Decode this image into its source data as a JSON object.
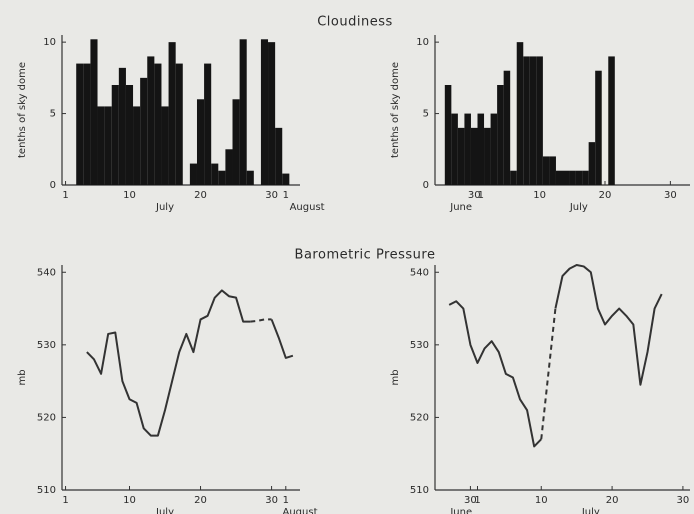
{
  "titles": [
    "Cloudiness",
    "Barometric Pressure"
  ],
  "chart_data": [
    {
      "type": "bar",
      "ylabel": "tenths of sky dome",
      "color": "#141414",
      "x": [
        3,
        4,
        5,
        6,
        7,
        8,
        9,
        10,
        11,
        12,
        13,
        14,
        15,
        16,
        17,
        18,
        19,
        20,
        21,
        22,
        23,
        24,
        25,
        26,
        27,
        28,
        29,
        30,
        31,
        32
      ],
      "values": [
        8.5,
        8.5,
        10.2,
        5.5,
        5.5,
        7,
        8.2,
        7,
        5.5,
        7.5,
        9,
        8.5,
        5.5,
        10,
        8.5,
        0,
        1.5,
        6,
        8.5,
        1.5,
        1,
        2.5,
        6,
        10.2,
        1,
        0,
        10.2,
        10,
        4,
        0.8
      ],
      "xlim": [
        0.5,
        34
      ],
      "xticks": [
        1,
        10,
        20,
        30,
        {
          "value": 32,
          "label": "1"
        }
      ],
      "ylim": [
        0,
        10.5
      ],
      "yticks": [
        0,
        5,
        10
      ],
      "month_labels": [
        {
          "value": 15,
          "label": "July"
        },
        {
          "value": 35,
          "label": "August"
        }
      ]
    },
    {
      "type": "bar",
      "ylabel": "tenths of sky dome",
      "color": "#141414",
      "x": [
        -4,
        -3,
        -2,
        -1,
        0,
        1,
        2,
        3,
        4,
        5,
        6,
        7,
        8,
        9,
        10,
        11,
        12,
        13,
        14,
        15,
        16,
        17,
        18,
        19,
        20,
        21
      ],
      "values": [
        7,
        5,
        4,
        5,
        4,
        5,
        4,
        5,
        7,
        8,
        1,
        10,
        9,
        9,
        9,
        2,
        2,
        1,
        1,
        1,
        1,
        1,
        3,
        8,
        0,
        9
      ],
      "xlim": [
        -6,
        33
      ],
      "xticks": [
        {
          "value": 0,
          "label": "30"
        },
        1,
        10,
        20,
        30
      ],
      "ylim": [
        0,
        10.5
      ],
      "yticks": [
        0,
        5,
        10
      ],
      "month_labels": [
        {
          "value": -2,
          "label": "June"
        },
        {
          "value": 16,
          "label": "July"
        }
      ]
    },
    {
      "type": "line",
      "ylabel": "mb",
      "x": [
        4,
        5,
        6,
        7,
        8,
        9,
        10,
        11,
        12,
        13,
        14,
        15,
        16,
        17,
        18,
        19,
        20,
        21,
        22,
        23,
        24,
        25,
        26,
        27,
        28,
        29,
        30,
        31,
        32,
        33
      ],
      "series": [
        {
          "color": "#333333",
          "dash": false,
          "values": [
            529,
            528,
            526,
            531.5,
            531.7,
            525,
            522.5,
            522,
            518.5,
            517.5,
            517.5,
            521,
            525,
            529,
            531.5,
            529,
            533.5,
            534,
            536.5,
            537.5,
            536.7,
            536.5,
            533.2,
            533.2,
            null,
            null,
            533.5,
            531,
            528.2,
            528.5
          ]
        },
        {
          "color": "#333333",
          "dash": true,
          "values": [
            null,
            null,
            null,
            null,
            null,
            null,
            null,
            null,
            null,
            null,
            null,
            null,
            null,
            null,
            null,
            null,
            null,
            null,
            null,
            null,
            null,
            null,
            null,
            533.2,
            533.3,
            533.5,
            533.5,
            null,
            null,
            null
          ]
        }
      ],
      "xlim": [
        0.5,
        34
      ],
      "xticks": [
        1,
        10,
        20,
        30,
        {
          "value": 32,
          "label": "1"
        }
      ],
      "ylim": [
        510,
        541
      ],
      "yticks": [
        510,
        520,
        530,
        540
      ],
      "month_labels": [
        {
          "value": 15,
          "label": "July"
        },
        {
          "value": 34,
          "label": "August"
        }
      ]
    },
    {
      "type": "line",
      "ylabel": "mb",
      "x": [
        -3,
        -2,
        -1,
        0,
        1,
        2,
        3,
        4,
        5,
        6,
        7,
        8,
        9,
        10,
        11,
        12,
        13,
        14,
        15,
        16,
        17,
        18,
        19,
        20,
        21,
        22,
        23,
        24,
        25,
        26,
        27
      ],
      "series": [
        {
          "color": "#333333",
          "dash": false,
          "values": [
            535.5,
            536,
            535,
            530,
            527.5,
            529.5,
            530.5,
            529,
            526,
            525.5,
            522.5,
            521,
            516,
            517,
            null,
            535,
            539.5,
            540.5,
            541,
            540.8,
            540,
            535,
            532.8,
            534,
            535,
            534,
            532.8,
            524.5,
            529,
            535,
            537
          ]
        },
        {
          "color": "#333333",
          "dash": true,
          "values": [
            null,
            null,
            null,
            null,
            null,
            null,
            null,
            null,
            null,
            null,
            null,
            null,
            null,
            517,
            526,
            535,
            null,
            null,
            null,
            null,
            null,
            null,
            null,
            null,
            null,
            null,
            null,
            null,
            null,
            null,
            null
          ]
        }
      ],
      "xlim": [
        -5,
        31
      ],
      "xticks": [
        {
          "value": 0,
          "label": "30"
        },
        1,
        10,
        20,
        30
      ],
      "ylim": [
        510,
        541
      ],
      "yticks": [
        510,
        520,
        530,
        540
      ],
      "month_labels": [
        {
          "value": -1.3,
          "label": "June"
        },
        {
          "value": 17,
          "label": "July"
        }
      ]
    }
  ]
}
